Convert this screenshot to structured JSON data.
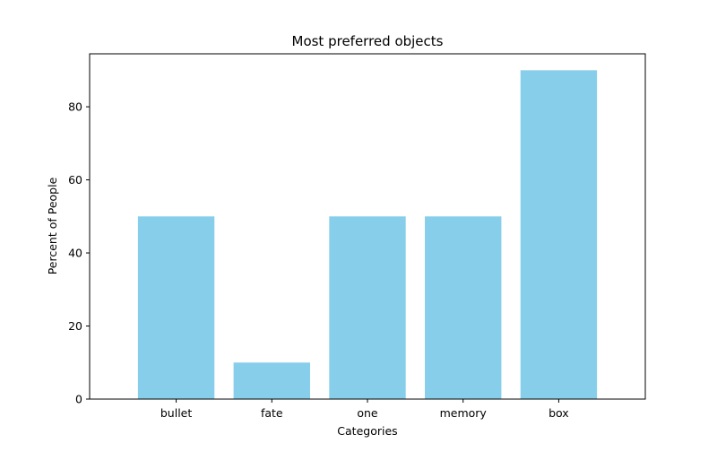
{
  "chart_data": {
    "type": "bar",
    "title": "Most preferred objects",
    "xlabel": "Categories",
    "ylabel": "Percent of People",
    "categories": [
      "bullet",
      "fate",
      "one",
      "memory",
      "box"
    ],
    "values": [
      50,
      10,
      50,
      50,
      90
    ],
    "ylim": [
      0,
      94.5
    ],
    "yticks": [
      0,
      20,
      40,
      60,
      80
    ],
    "bar_color": "#87CEEB",
    "grid": false,
    "legend": "none"
  }
}
